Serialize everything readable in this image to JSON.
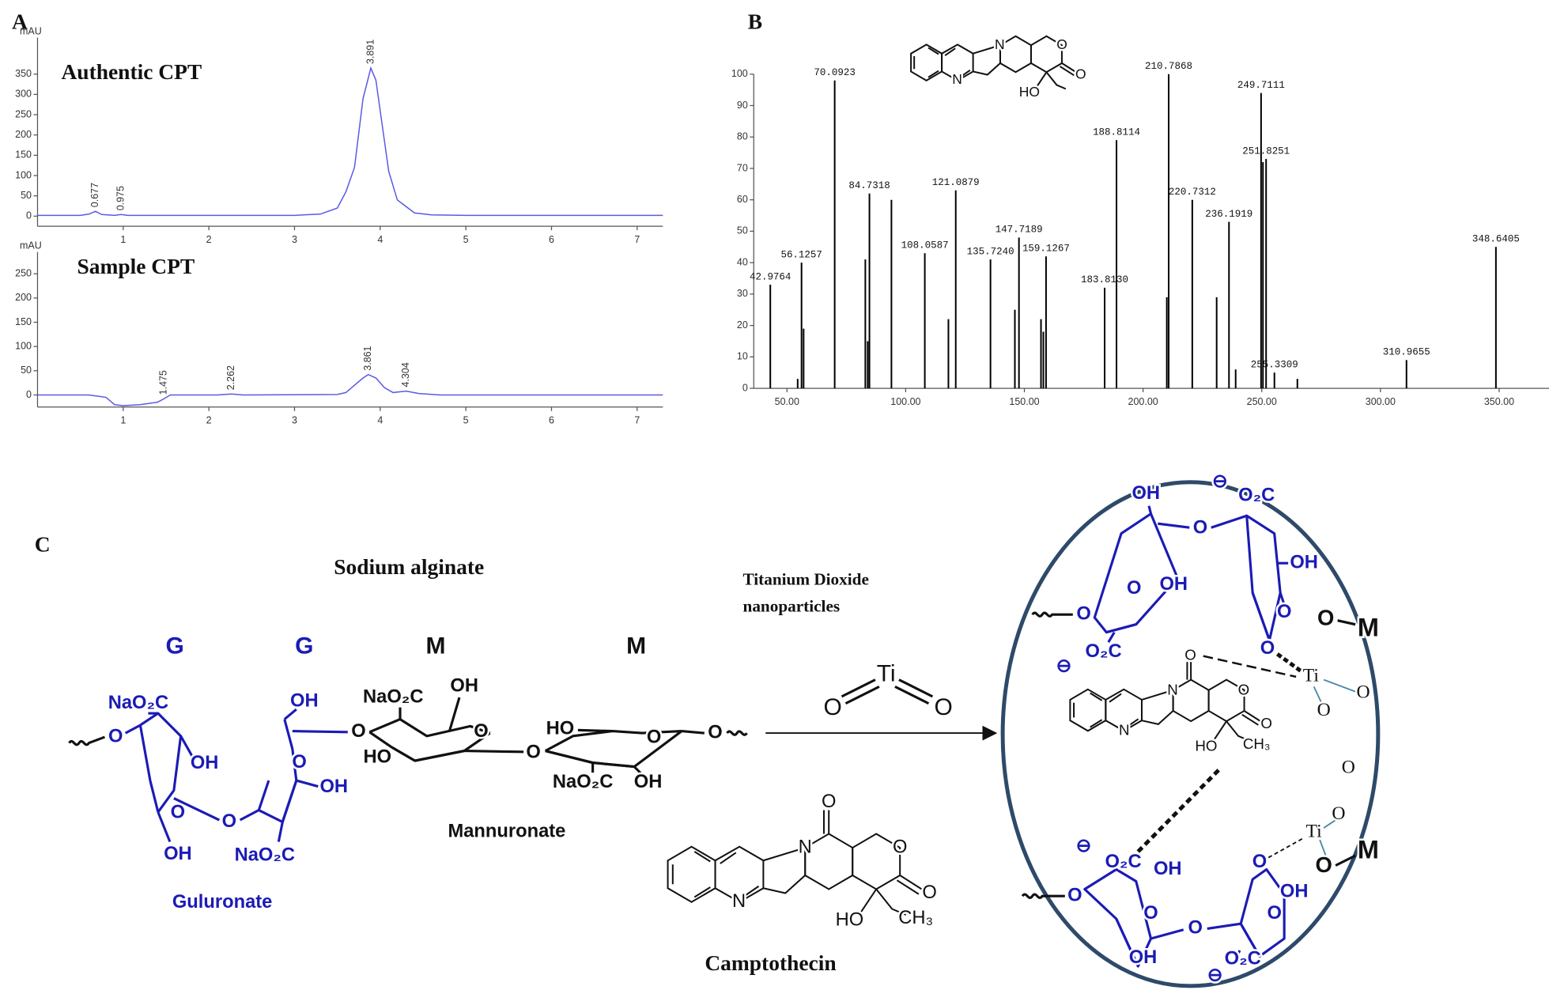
{
  "panels": [
    "A",
    "B",
    "C"
  ],
  "chart_data": [
    {
      "type": "line",
      "title": "Authentic CPT",
      "ylabel": "mAU",
      "color": "#5a5ae6",
      "x": [
        0,
        0.5,
        0.6,
        0.677,
        0.75,
        0.9,
        0.975,
        1.05,
        1.2,
        3.0,
        3.3,
        3.5,
        3.6,
        3.7,
        3.8,
        3.891,
        3.95,
        4.0,
        4.1,
        4.2,
        4.4,
        4.6,
        5,
        7.3
      ],
      "values": [
        2,
        2,
        5,
        12,
        4,
        2,
        4,
        2,
        2,
        2,
        5,
        20,
        60,
        120,
        290,
        365,
        335,
        260,
        110,
        40,
        8,
        3,
        2,
        2
      ],
      "peak_x": [
        0.677,
        0.975,
        3.891
      ],
      "peak_labels": [
        "0.677",
        "0.975",
        "3.891"
      ],
      "xlim": [
        0,
        7.3
      ],
      "ylim": [
        -25,
        440
      ],
      "xticks": [
        1,
        2,
        3,
        4,
        5,
        6,
        7
      ],
      "yticks": [
        0,
        50,
        100,
        150,
        200,
        250,
        300,
        350
      ]
    },
    {
      "type": "line",
      "title": "Sample CPT",
      "ylabel": "mAU",
      "color": "#5a5ae6",
      "x": [
        0,
        0.6,
        0.8,
        0.9,
        1.0,
        1.2,
        1.4,
        1.475,
        1.55,
        2.1,
        2.262,
        2.4,
        3.5,
        3.6,
        3.7,
        3.8,
        3.861,
        3.95,
        4.05,
        4.15,
        4.304,
        4.45,
        4.7,
        7.3
      ],
      "values": [
        0,
        0,
        -5,
        -20,
        -22,
        -20,
        -15,
        -8,
        0,
        0,
        2,
        0,
        1,
        5,
        20,
        35,
        42,
        35,
        15,
        5,
        8,
        3,
        0,
        0
      ],
      "peak_x": [
        1.475,
        2.262,
        3.861,
        4.304
      ],
      "peak_labels": [
        "1.475",
        "2.262",
        "3.861",
        "4.304"
      ],
      "xlim": [
        0,
        7.3
      ],
      "ylim": [
        -25,
        295
      ],
      "xticks": [
        1,
        2,
        3,
        4,
        5,
        6,
        7
      ],
      "yticks": [
        0,
        50,
        100,
        150,
        200,
        250
      ]
    },
    {
      "type": "stem",
      "color": "#000000",
      "x": [
        42.9764,
        54.5,
        56.1257,
        57,
        70.0923,
        83,
        84,
        84.7318,
        94,
        108.0587,
        118,
        121.0879,
        135.724,
        146,
        147.7189,
        157,
        158,
        159.1267,
        183.813,
        188.8114,
        210,
        210.7868,
        220.7312,
        231,
        236.1919,
        239,
        249.7111,
        250.5,
        251.8251,
        255.3309,
        265,
        310.9655,
        348.6405
      ],
      "values": [
        33,
        3,
        40,
        19,
        98,
        41,
        15,
        62,
        60,
        43,
        22,
        63,
        41,
        25,
        48,
        22,
        18,
        42,
        32,
        79,
        29,
        100,
        60,
        29,
        53,
        6,
        94,
        72,
        73,
        5,
        3,
        9,
        45
      ],
      "labels": [
        "42.9764",
        null,
        "56.1257",
        null,
        "70.0923",
        null,
        null,
        "84.7318",
        null,
        "108.0587",
        null,
        "121.0879",
        "135.7240",
        null,
        "147.7189",
        null,
        null,
        "159.1267",
        "183.8130",
        "188.8114",
        null,
        "210.7868",
        "220.7312",
        null,
        "236.1919",
        null,
        "249.7111",
        null,
        "251.8251",
        "255.3309",
        null,
        "310.9655",
        "348.6405"
      ],
      "xlim": [
        36,
        371
      ],
      "ylim": [
        0,
        100
      ],
      "xticks": [
        {
          "value": 50,
          "label": "50.00"
        },
        {
          "value": 100,
          "label": "100.00"
        },
        {
          "value": 150,
          "label": "150.00"
        },
        {
          "value": 200,
          "label": "200.00"
        },
        {
          "value": 250,
          "label": "250.00"
        },
        {
          "value": 300,
          "label": "300.00"
        },
        {
          "value": 350,
          "label": "350.00"
        }
      ],
      "yticks": [
        0,
        10,
        20,
        30,
        40,
        50,
        60,
        70,
        80,
        90,
        100
      ]
    }
  ],
  "diagram": {
    "title": "Sodium alginate",
    "reagent": [
      "Titanium Dioxide",
      "nanoparticles"
    ],
    "product_name": "Camptothecin",
    "labels": [
      "G",
      "G",
      "M",
      "M",
      "NaO₂C",
      "O",
      "OH",
      "O",
      "OH",
      "O",
      "NaO₂C",
      "OH",
      "O",
      "OH",
      "Guluronate",
      "O",
      "NaO₂C",
      "OH",
      "O",
      "HO",
      "O",
      "HO",
      "O",
      "O",
      "NaO₂C",
      "OH",
      "Mannuronate",
      "O",
      "Ti",
      "O",
      "O",
      "N",
      "N",
      "O",
      "O",
      "HO",
      "CH₃",
      "N",
      "N",
      "O",
      "O",
      "HO",
      "OH",
      "⊖",
      "O₂C",
      "O",
      "O",
      "OH",
      "OH",
      "O",
      "O",
      "O",
      "M",
      "⊖",
      "O₂C",
      "O",
      "Ti",
      "O",
      "O",
      "O",
      "N",
      "N",
      "O",
      "O",
      "HO",
      "CH₃",
      "O",
      "⊖",
      "O₂C",
      "O",
      "Ti",
      "O",
      "M",
      "O",
      "O",
      "OH",
      "O",
      "OH",
      "O",
      "O",
      "OH",
      "⊖",
      "O₂C"
    ]
  }
}
